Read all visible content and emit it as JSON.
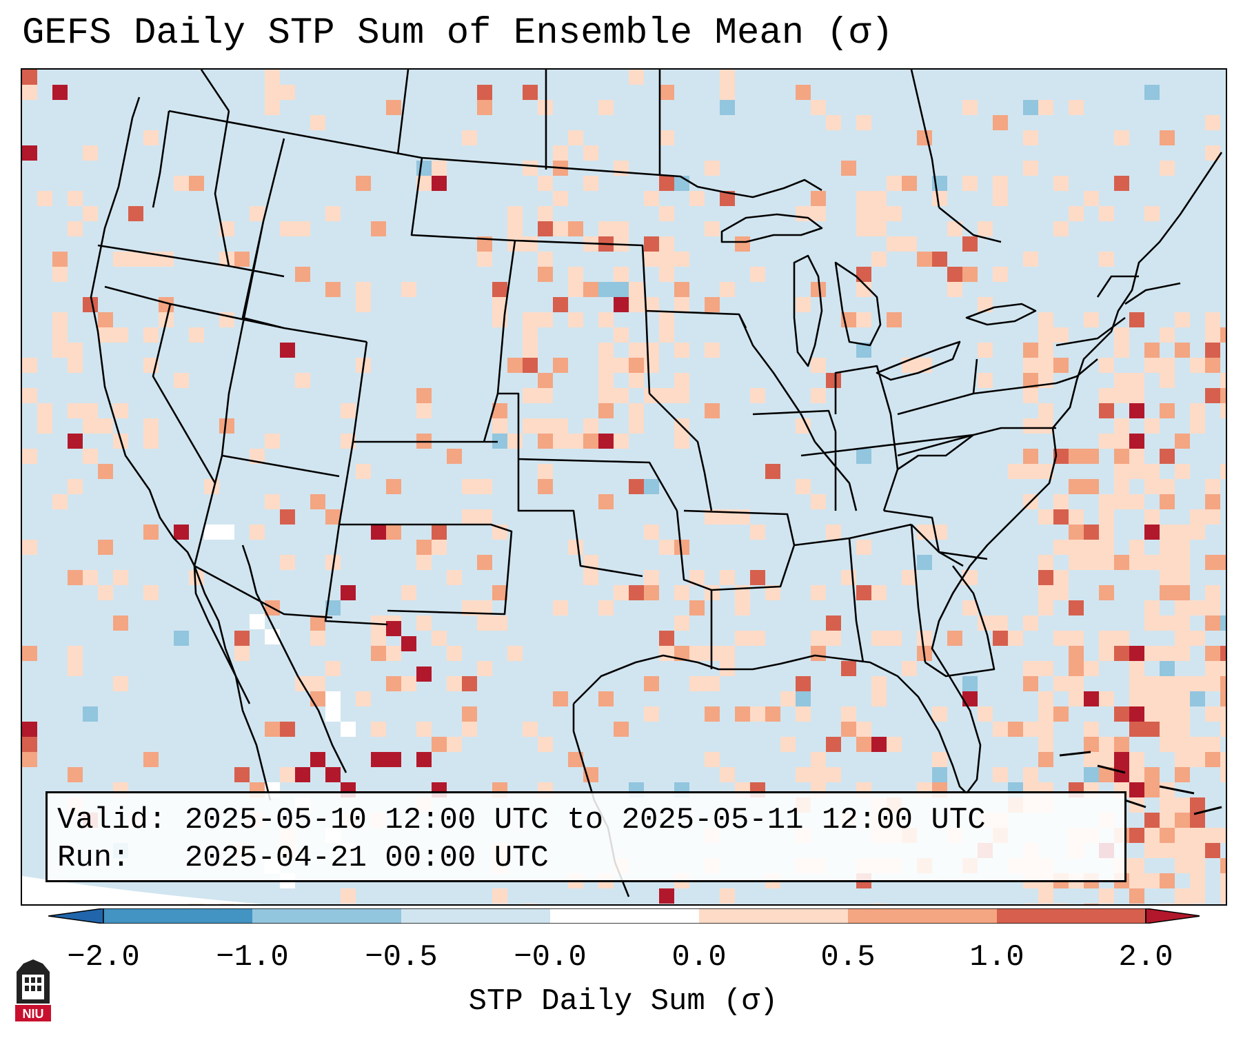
{
  "title": "GEFS Daily STP Sum of Ensemble Mean (σ)",
  "info": {
    "valid_label": "Valid:",
    "valid_value": "2025-05-10 12:00 UTC to 2025-05-11 12:00 UTC",
    "run_label": "Run:",
    "run_value": "2025-04-21 00:00 UTC"
  },
  "colorbar": {
    "label": "STP Daily Sum (σ)",
    "ticks": [
      "−2.0",
      "−1.0",
      "−0.5",
      "−0.0",
      "0.0",
      "0.5",
      "1.0",
      "2.0"
    ],
    "colors": [
      "#2166ac",
      "#4393c3",
      "#92c5de",
      "#d1e5f0",
      "#ffffff",
      "#fddbc7",
      "#f4a582",
      "#d6604d",
      "#b2182b"
    ],
    "extend": "both"
  },
  "map": {
    "region": "Continental United States",
    "projection": "Lambert Conformal",
    "ocean_color": "#d1e5f0",
    "outline_color": "#000000"
  },
  "logo": {
    "text": "NIU"
  }
}
